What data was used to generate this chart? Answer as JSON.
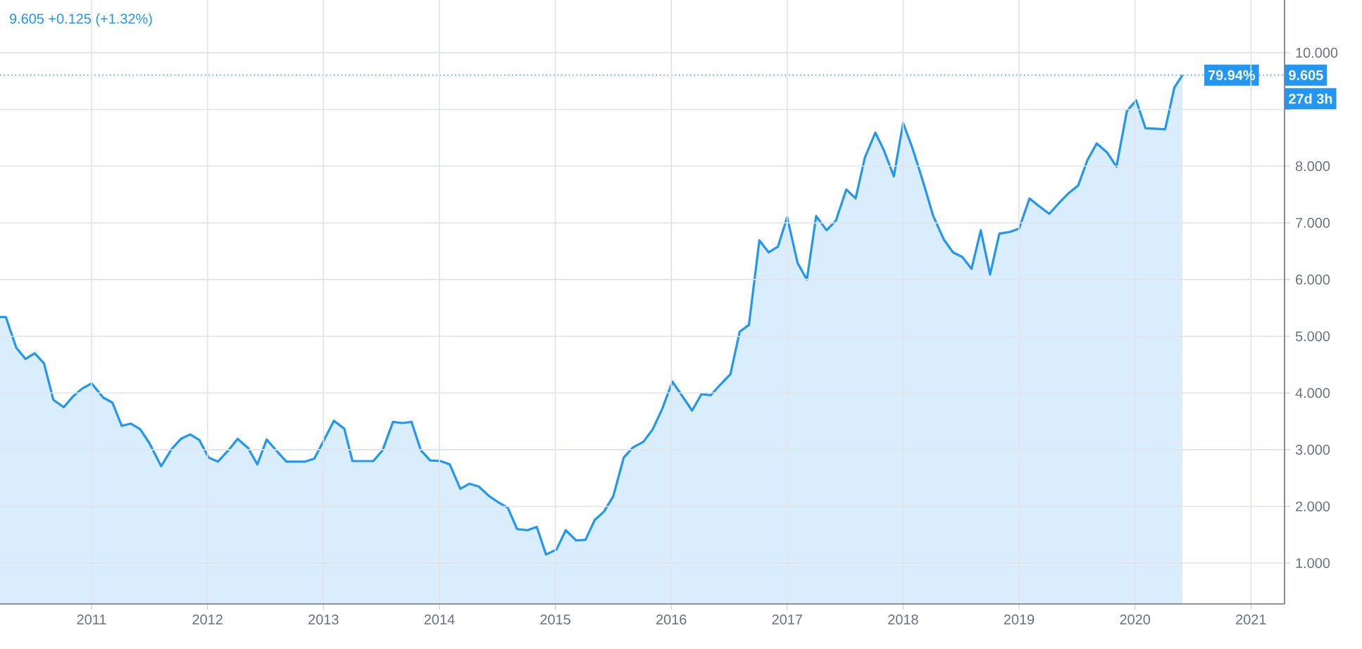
{
  "chart_data": {
    "type": "area",
    "title": "9.605  +0.125 (+1.32%)",
    "annotations": [
      "79.94%",
      "27d 3h"
    ],
    "xlim": [
      2010.21,
      2021.29
    ],
    "ylim": [
      0.28,
      10.93
    ],
    "xticks": [
      2011,
      2012,
      2013,
      2014,
      2015,
      2016,
      2017,
      2018,
      2019,
      2020,
      2021
    ],
    "yticks": [
      {
        "value": 1,
        "label": "1.000"
      },
      {
        "value": 2,
        "label": "2.000"
      },
      {
        "value": 3,
        "label": "3.000"
      },
      {
        "value": 4,
        "label": "4.000"
      },
      {
        "value": 5,
        "label": "5.000"
      },
      {
        "value": 6,
        "label": "6.000"
      },
      {
        "value": 7,
        "label": "7.000"
      },
      {
        "value": 8,
        "label": "8.000"
      },
      {
        "value": 9,
        "label": null
      },
      {
        "value": 10,
        "label": "10.000"
      }
    ],
    "grid": true,
    "ref_lines": [
      {
        "axis": "y",
        "value": 9.605,
        "label": "9.605",
        "color": "#2196f3",
        "line_style": "dotted"
      }
    ],
    "series": [
      {
        "color": "#2196f3",
        "x": [
          2010.21,
          2010.26,
          2010.35,
          2010.43,
          2010.51,
          2010.59,
          2010.67,
          2010.76,
          2010.84,
          2010.92,
          2011.0,
          2011.1,
          2011.18,
          2011.26,
          2011.34,
          2011.42,
          2011.5,
          2011.6,
          2011.69,
          2011.77,
          2011.85,
          2011.93,
          2012.01,
          2012.09,
          2012.18,
          2012.26,
          2012.35,
          2012.43,
          2012.51,
          2012.6,
          2012.68,
          2012.84,
          2012.92,
          2013.0,
          2013.09,
          2013.18,
          2013.25,
          2013.43,
          2013.51,
          2013.6,
          2013.68,
          2013.76,
          2013.84,
          2013.92,
          2014.01,
          2014.09,
          2014.18,
          2014.26,
          2014.34,
          2014.43,
          2014.51,
          2014.59,
          2014.67,
          2014.76,
          2014.84,
          2014.92,
          2015.01,
          2015.09,
          2015.18,
          2015.26,
          2015.34,
          2015.42,
          2015.5,
          2015.59,
          2015.67,
          2015.76,
          2015.84,
          2015.92,
          2016.01,
          2016.18,
          2016.26,
          2016.34,
          2016.42,
          2016.51,
          2016.59,
          2016.67,
          2016.76,
          2016.84,
          2016.92,
          2017.0,
          2017.09,
          2017.17,
          2017.25,
          2017.34,
          2017.42,
          2017.51,
          2017.59,
          2017.67,
          2017.76,
          2017.83,
          2017.92,
          2018.0,
          2018.08,
          2018.17,
          2018.26,
          2018.35,
          2018.43,
          2018.51,
          2018.59,
          2018.67,
          2018.75,
          2018.83,
          2018.92,
          2019.0,
          2019.09,
          2019.17,
          2019.26,
          2019.34,
          2019.42,
          2019.51,
          2019.59,
          2019.67,
          2019.76,
          2019.84,
          2019.93,
          2020.01,
          2020.09,
          2020.26,
          2020.34,
          2020.41
        ],
        "values": [
          5.34,
          5.34,
          4.8,
          4.6,
          4.7,
          4.52,
          3.88,
          3.75,
          3.94,
          4.08,
          4.17,
          3.92,
          3.83,
          3.42,
          3.46,
          3.36,
          3.11,
          2.71,
          3.01,
          3.19,
          3.27,
          3.17,
          2.86,
          2.79,
          2.99,
          3.19,
          3.03,
          2.74,
          3.18,
          2.97,
          2.79,
          2.79,
          2.84,
          3.15,
          3.51,
          3.37,
          2.8,
          2.8,
          2.99,
          3.49,
          3.47,
          3.49,
          2.99,
          2.81,
          2.8,
          2.74,
          2.31,
          2.4,
          2.35,
          2.18,
          2.07,
          1.98,
          1.6,
          1.58,
          1.64,
          1.15,
          1.24,
          1.58,
          1.4,
          1.41,
          1.76,
          1.91,
          2.18,
          2.86,
          3.04,
          3.14,
          3.36,
          3.71,
          4.2,
          3.69,
          3.98,
          3.96,
          4.14,
          4.33,
          5.08,
          5.2,
          6.69,
          6.48,
          6.58,
          7.1,
          6.29,
          6.0,
          7.12,
          6.87,
          7.04,
          7.59,
          7.43,
          8.15,
          8.59,
          8.3,
          7.82,
          8.76,
          8.32,
          7.74,
          7.12,
          6.71,
          6.48,
          6.4,
          6.19,
          6.87,
          6.09,
          6.81,
          6.84,
          6.9,
          7.43,
          7.3,
          7.16,
          7.34,
          7.51,
          7.66,
          8.11,
          8.4,
          8.24,
          7.99,
          8.97,
          9.16,
          8.67,
          8.65,
          9.39,
          9.605
        ]
      }
    ]
  }
}
